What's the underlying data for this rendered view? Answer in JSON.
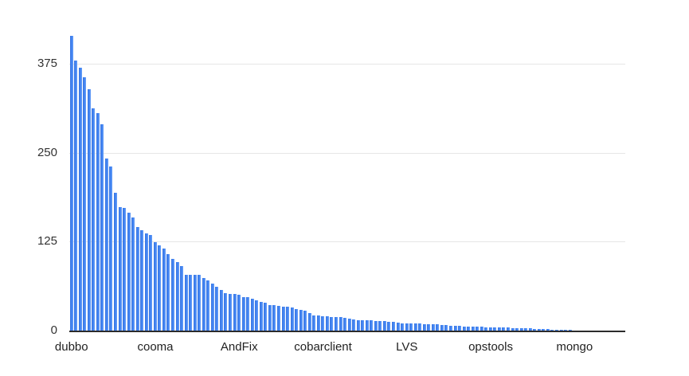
{
  "chart_data": {
    "type": "bar",
    "title": "",
    "xlabel": "",
    "ylabel": "",
    "legend": "none",
    "grid": true,
    "y_ticks": [
      0,
      125,
      250,
      375
    ],
    "ylim": [
      0,
      440
    ],
    "colors": {
      "bar_main": "#4285f4",
      "bar_gradient_left": "#3a76e0",
      "bar_gradient_right": "#6ea2f5",
      "gridline": "#e6e6e6",
      "axis_line": "#2b2b2b",
      "tick_label": "#333333"
    },
    "x_labels": [
      {
        "index": 0,
        "label": "dubbo"
      },
      {
        "index": 19,
        "label": "cooma"
      },
      {
        "index": 38,
        "label": "AndFix"
      },
      {
        "index": 57,
        "label": "cobarclient"
      },
      {
        "index": 76,
        "label": "LVS"
      },
      {
        "index": 95,
        "label": "opstools"
      },
      {
        "index": 114,
        "label": "mongo"
      }
    ],
    "values": [
      414,
      379,
      369,
      356,
      339,
      312,
      306,
      290,
      242,
      230,
      194,
      174,
      172,
      166,
      159,
      146,
      141,
      137,
      134,
      124,
      120,
      115,
      107,
      101,
      96,
      91,
      78,
      78,
      78,
      78,
      74,
      70,
      66,
      62,
      57,
      53,
      51,
      51,
      50,
      47,
      47,
      45,
      42,
      40,
      39,
      36,
      36,
      35,
      34,
      34,
      32,
      30,
      29,
      28,
      25,
      21,
      21,
      20,
      20,
      19,
      19,
      19,
      18,
      17,
      16,
      15,
      15,
      14,
      14,
      13,
      13,
      13,
      12,
      12,
      11,
      10,
      10,
      10,
      10,
      10,
      9,
      9,
      9,
      9,
      8,
      8,
      7,
      7,
      7,
      6,
      6,
      6,
      6,
      6,
      5,
      5,
      4,
      4,
      4,
      4,
      3,
      3,
      3,
      3,
      3,
      2,
      2,
      2,
      2,
      1,
      1,
      1,
      1,
      1,
      0,
      0,
      0,
      0,
      0,
      0,
      0,
      0,
      0,
      0,
      0,
      0
    ]
  }
}
